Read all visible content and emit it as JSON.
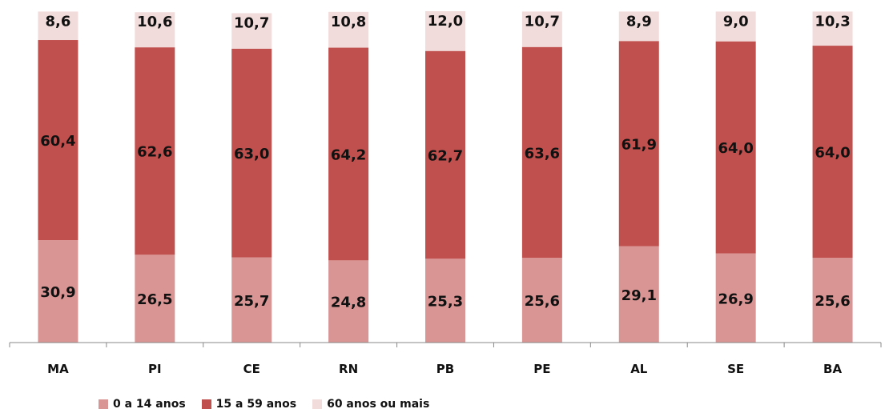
{
  "chart_data": {
    "type": "bar",
    "stacked": true,
    "categories": [
      "MA",
      "PI",
      "CE",
      "RN",
      "PB",
      "PE",
      "AL",
      "SE",
      "BA"
    ],
    "series": [
      {
        "name": "0 a 14 anos",
        "color": "#d99594",
        "values": [
          30.9,
          26.5,
          25.7,
          24.8,
          25.3,
          25.6,
          29.1,
          26.9,
          25.6
        ],
        "labels": [
          "30,9",
          "26,5",
          "25,7",
          "24,8",
          "25,3",
          "25,6",
          "29,1",
          "26,9",
          "25,6"
        ]
      },
      {
        "name": "15 a 59 anos",
        "color": "#c0504d",
        "values": [
          60.4,
          62.6,
          63.0,
          64.2,
          62.7,
          63.6,
          61.9,
          64.0,
          64.0
        ],
        "labels": [
          "60,4",
          "62,6",
          "63,0",
          "64,2",
          "62,7",
          "63,6",
          "61,9",
          "64,0",
          "64,0"
        ]
      },
      {
        "name": "60 anos ou mais",
        "color": "#f2dcdb",
        "values": [
          8.6,
          10.6,
          10.7,
          10.8,
          12.0,
          10.7,
          8.9,
          9.0,
          10.3
        ],
        "labels": [
          "8,6",
          "10,6",
          "10,7",
          "10,8",
          "12,0",
          "10,7",
          "8,9",
          "9,0",
          "10,3"
        ]
      }
    ],
    "ylim": [
      0,
      100
    ],
    "grid": false,
    "legend": "bottom-left"
  }
}
